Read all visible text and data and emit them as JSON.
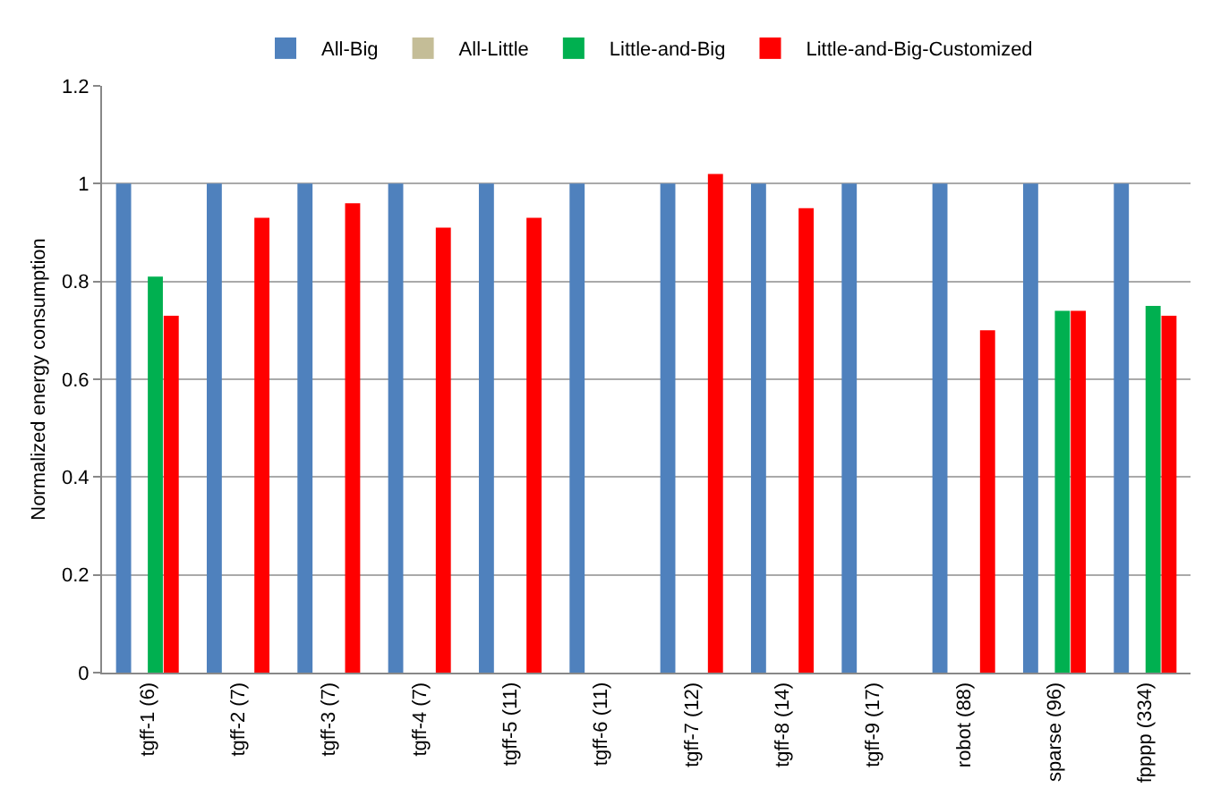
{
  "chart_data": {
    "type": "bar",
    "ylabel": "Normalized energy consumption",
    "categories": [
      "tgff-1 (6)",
      "tgff-2 (7)",
      "tgff-3 (7)",
      "tgff-4 (7)",
      "tgff-5 (11)",
      "tgff-6 (11)",
      "tgff-7 (12)",
      "tgff-8 (14)",
      "tgff-9 (17)",
      "robot (88)",
      "sparse (96)",
      "fpppp (334)"
    ],
    "series": [
      {
        "name": "All-Big",
        "color": "#4f81bd",
        "values": [
          1,
          1,
          1,
          1,
          1,
          1,
          1,
          1,
          1,
          1,
          1,
          1
        ]
      },
      {
        "name": "All-Little",
        "color": "#c4bd97",
        "values": [
          null,
          null,
          null,
          null,
          null,
          null,
          null,
          null,
          null,
          null,
          null,
          null
        ]
      },
      {
        "name": "Little-and-Big",
        "color": "#00b050",
        "values": [
          0.81,
          null,
          null,
          null,
          null,
          null,
          null,
          null,
          null,
          null,
          0.74,
          0.75
        ]
      },
      {
        "name": "Little-and-Big-Customized",
        "color": "#ff0000",
        "values": [
          0.73,
          0.93,
          0.96,
          0.91,
          0.93,
          null,
          1.02,
          0.95,
          null,
          0.7,
          0.74,
          0.73
        ]
      }
    ],
    "ylim": [
      0,
      1.2
    ],
    "yticks": [
      0,
      0.2,
      0.4,
      0.6,
      0.8,
      1,
      1.2
    ],
    "grid": "y",
    "legend": "top"
  }
}
